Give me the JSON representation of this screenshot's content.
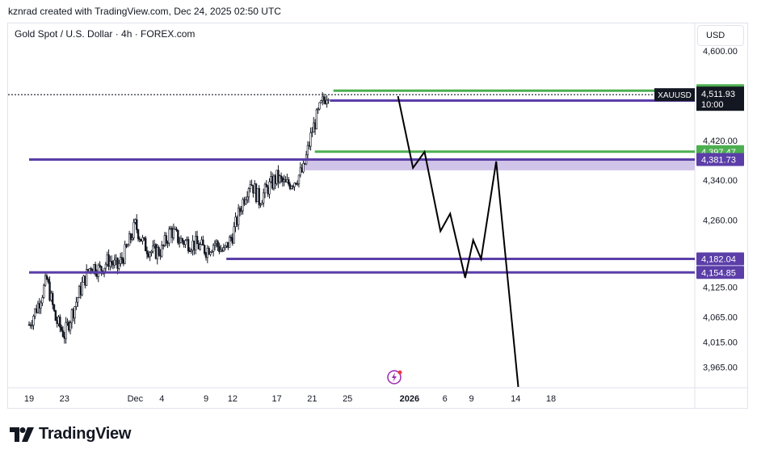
{
  "header": {
    "credit": "kznrad created with TradingView.com, Dec 24, 2025 02:50 UTC",
    "symbol_title": "Gold Spot / U.S. Dollar · 4h · FOREX.com",
    "currency": "USD"
  },
  "footer": {
    "brand": "TradingView"
  },
  "colors": {
    "candle": "#131722",
    "support": "#5b3ea8",
    "resistance": "#4caf50",
    "zone": "#d1c4e9",
    "projection": "#000000",
    "last_price_bg": "#131722"
  },
  "chart_data": {
    "type": "candlestick",
    "symbol": "XAUUSD",
    "timeframe": "4h",
    "ylim": [
      3925,
      4655
    ],
    "y_ticks": [
      {
        "value": 4600,
        "label": "4,600.00"
      },
      {
        "value": 4420,
        "label": "4,420.00"
      },
      {
        "value": 4340,
        "label": "4,340.00"
      },
      {
        "value": 4260,
        "label": "4,260.00"
      },
      {
        "value": 4125,
        "label": "4,125.00"
      },
      {
        "value": 4065,
        "label": "4,065.00"
      },
      {
        "value": 4015,
        "label": "4,015.00"
      },
      {
        "value": 3965,
        "label": "3,965.00"
      }
    ],
    "x_ticks": [
      {
        "day": 0,
        "label": "19"
      },
      {
        "day": 4,
        "label": "23"
      },
      {
        "day": 12,
        "label": "Dec"
      },
      {
        "day": 15,
        "label": "4"
      },
      {
        "day": 20,
        "label": "9"
      },
      {
        "day": 23,
        "label": "12"
      },
      {
        "day": 28,
        "label": "17"
      },
      {
        "day": 32,
        "label": "21"
      },
      {
        "day": 36,
        "label": "25"
      },
      {
        "day": 43,
        "label": "2026",
        "bold": true
      },
      {
        "day": 47,
        "label": "6"
      },
      {
        "day": 50,
        "label": "9"
      },
      {
        "day": 55,
        "label": "14"
      },
      {
        "day": 59,
        "label": "18"
      }
    ],
    "close_path": [
      [
        0,
        4050
      ],
      [
        1,
        4090
      ],
      [
        2,
        4140
      ],
      [
        3,
        4060
      ],
      [
        4,
        4030
      ],
      [
        5,
        4080
      ],
      [
        6,
        4130
      ],
      [
        7,
        4170
      ],
      [
        8,
        4160
      ],
      [
        9,
        4180
      ],
      [
        10,
        4165
      ],
      [
        11,
        4200
      ],
      [
        12,
        4250
      ],
      [
        13,
        4210
      ],
      [
        14,
        4195
      ],
      [
        15,
        4200
      ],
      [
        16,
        4240
      ],
      [
        17,
        4220
      ],
      [
        18,
        4215
      ],
      [
        19,
        4210
      ],
      [
        20,
        4200
      ],
      [
        21,
        4215
      ],
      [
        22,
        4195
      ],
      [
        23,
        4230
      ],
      [
        24,
        4290
      ],
      [
        25,
        4340
      ],
      [
        26,
        4300
      ],
      [
        27,
        4325
      ],
      [
        28,
        4345
      ],
      [
        29,
        4330
      ],
      [
        30,
        4340
      ],
      [
        31,
        4360
      ],
      [
        32,
        4440
      ],
      [
        33,
        4490
      ],
      [
        34,
        4525
      ]
    ],
    "current_price": 4511.93,
    "last_price_label": "4,511.93",
    "countdown": "10:00",
    "levels": [
      {
        "value": 4520.03,
        "label": "4,520.03",
        "kind": "resistance",
        "from_day": 34.4
      },
      {
        "value": 4500.0,
        "label": "4,500.00",
        "kind": "support",
        "from_day": 34.0
      },
      {
        "value": 4397.47,
        "label": "4,397.47",
        "kind": "resistance",
        "from_day": 32.3
      },
      {
        "value": 4381.73,
        "label": "4,381.73",
        "kind": "support",
        "from_day": 0
      },
      {
        "value": 4182.04,
        "label": "4,182.04",
        "kind": "support",
        "from_day": 22.3
      },
      {
        "value": 4154.85,
        "label": "4,154.85",
        "kind": "support",
        "from_day": 0
      }
    ],
    "zone": {
      "from": 4360,
      "to": 4382,
      "from_day": 31.0
    },
    "projection": [
      [
        41.7,
        4509
      ],
      [
        43.4,
        4365
      ],
      [
        44.7,
        4397
      ],
      [
        46.5,
        4238
      ],
      [
        47.6,
        4273
      ],
      [
        49.3,
        4144
      ],
      [
        50.2,
        4220
      ],
      [
        51.1,
        4182
      ],
      [
        52.8,
        4378
      ],
      [
        55.3,
        3925
      ]
    ]
  }
}
